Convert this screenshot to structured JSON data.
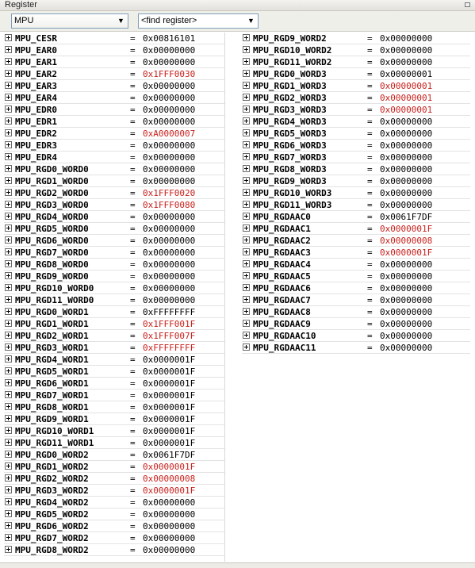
{
  "window": {
    "title": "Register"
  },
  "toolbar": {
    "module_value": "MPU",
    "find_placeholder": "<find register>"
  },
  "colors": {
    "changed": "#c8201c",
    "normal": "#000000"
  },
  "registers": {
    "left": [
      {
        "name": "MPU_CESR",
        "value": "0x00816101",
        "changed": false
      },
      {
        "name": "MPU_EAR0",
        "value": "0x00000000",
        "changed": false
      },
      {
        "name": "MPU_EAR1",
        "value": "0x00000000",
        "changed": false
      },
      {
        "name": "MPU_EAR2",
        "value": "0x1FFF0030",
        "changed": true
      },
      {
        "name": "MPU_EAR3",
        "value": "0x00000000",
        "changed": false
      },
      {
        "name": "MPU_EAR4",
        "value": "0x00000000",
        "changed": false
      },
      {
        "name": "MPU_EDR0",
        "value": "0x00000000",
        "changed": false
      },
      {
        "name": "MPU_EDR1",
        "value": "0x00000000",
        "changed": false
      },
      {
        "name": "MPU_EDR2",
        "value": "0xA0000007",
        "changed": true
      },
      {
        "name": "MPU_EDR3",
        "value": "0x00000000",
        "changed": false
      },
      {
        "name": "MPU_EDR4",
        "value": "0x00000000",
        "changed": false
      },
      {
        "name": "MPU_RGD0_WORD0",
        "value": "0x00000000",
        "changed": false
      },
      {
        "name": "MPU_RGD1_WORD0",
        "value": "0x00000000",
        "changed": false
      },
      {
        "name": "MPU_RGD2_WORD0",
        "value": "0x1FFF0020",
        "changed": true
      },
      {
        "name": "MPU_RGD3_WORD0",
        "value": "0x1FFF0080",
        "changed": true
      },
      {
        "name": "MPU_RGD4_WORD0",
        "value": "0x00000000",
        "changed": false
      },
      {
        "name": "MPU_RGD5_WORD0",
        "value": "0x00000000",
        "changed": false
      },
      {
        "name": "MPU_RGD6_WORD0",
        "value": "0x00000000",
        "changed": false
      },
      {
        "name": "MPU_RGD7_WORD0",
        "value": "0x00000000",
        "changed": false
      },
      {
        "name": "MPU_RGD8_WORD0",
        "value": "0x00000000",
        "changed": false
      },
      {
        "name": "MPU_RGD9_WORD0",
        "value": "0x00000000",
        "changed": false
      },
      {
        "name": "MPU_RGD10_WORD0",
        "value": "0x00000000",
        "changed": false
      },
      {
        "name": "MPU_RGD11_WORD0",
        "value": "0x00000000",
        "changed": false
      },
      {
        "name": "MPU_RGD0_WORD1",
        "value": "0xFFFFFFFF",
        "changed": false
      },
      {
        "name": "MPU_RGD1_WORD1",
        "value": "0x1FFF001F",
        "changed": true
      },
      {
        "name": "MPU_RGD2_WORD1",
        "value": "0x1FFF007F",
        "changed": true
      },
      {
        "name": "MPU_RGD3_WORD1",
        "value": "0xFFFFFFFF",
        "changed": true
      },
      {
        "name": "MPU_RGD4_WORD1",
        "value": "0x0000001F",
        "changed": false
      },
      {
        "name": "MPU_RGD5_WORD1",
        "value": "0x0000001F",
        "changed": false
      },
      {
        "name": "MPU_RGD6_WORD1",
        "value": "0x0000001F",
        "changed": false
      },
      {
        "name": "MPU_RGD7_WORD1",
        "value": "0x0000001F",
        "changed": false
      },
      {
        "name": "MPU_RGD8_WORD1",
        "value": "0x0000001F",
        "changed": false
      },
      {
        "name": "MPU_RGD9_WORD1",
        "value": "0x0000001F",
        "changed": false
      },
      {
        "name": "MPU_RGD10_WORD1",
        "value": "0x0000001F",
        "changed": false
      },
      {
        "name": "MPU_RGD11_WORD1",
        "value": "0x0000001F",
        "changed": false
      },
      {
        "name": "MPU_RGD0_WORD2",
        "value": "0x0061F7DF",
        "changed": false
      },
      {
        "name": "MPU_RGD1_WORD2",
        "value": "0x0000001F",
        "changed": true
      },
      {
        "name": "MPU_RGD2_WORD2",
        "value": "0x00000008",
        "changed": true
      },
      {
        "name": "MPU_RGD3_WORD2",
        "value": "0x0000001F",
        "changed": true
      },
      {
        "name": "MPU_RGD4_WORD2",
        "value": "0x00000000",
        "changed": false
      },
      {
        "name": "MPU_RGD5_WORD2",
        "value": "0x00000000",
        "changed": false
      },
      {
        "name": "MPU_RGD6_WORD2",
        "value": "0x00000000",
        "changed": false
      },
      {
        "name": "MPU_RGD7_WORD2",
        "value": "0x00000000",
        "changed": false
      },
      {
        "name": "MPU_RGD8_WORD2",
        "value": "0x00000000",
        "changed": false
      }
    ],
    "right": [
      {
        "name": "MPU_RGD9_WORD2",
        "value": "0x00000000",
        "changed": false
      },
      {
        "name": "MPU_RGD10_WORD2",
        "value": "0x00000000",
        "changed": false
      },
      {
        "name": "MPU_RGD11_WORD2",
        "value": "0x00000000",
        "changed": false
      },
      {
        "name": "MPU_RGD0_WORD3",
        "value": "0x00000001",
        "changed": false
      },
      {
        "name": "MPU_RGD1_WORD3",
        "value": "0x00000001",
        "changed": true
      },
      {
        "name": "MPU_RGD2_WORD3",
        "value": "0x00000001",
        "changed": true
      },
      {
        "name": "MPU_RGD3_WORD3",
        "value": "0x00000001",
        "changed": true
      },
      {
        "name": "MPU_RGD4_WORD3",
        "value": "0x00000000",
        "changed": false
      },
      {
        "name": "MPU_RGD5_WORD3",
        "value": "0x00000000",
        "changed": false
      },
      {
        "name": "MPU_RGD6_WORD3",
        "value": "0x00000000",
        "changed": false
      },
      {
        "name": "MPU_RGD7_WORD3",
        "value": "0x00000000",
        "changed": false
      },
      {
        "name": "MPU_RGD8_WORD3",
        "value": "0x00000000",
        "changed": false
      },
      {
        "name": "MPU_RGD9_WORD3",
        "value": "0x00000000",
        "changed": false
      },
      {
        "name": "MPU_RGD10_WORD3",
        "value": "0x00000000",
        "changed": false
      },
      {
        "name": "MPU_RGD11_WORD3",
        "value": "0x00000000",
        "changed": false
      },
      {
        "name": "MPU_RGDAAC0",
        "value": "0x0061F7DF",
        "changed": false
      },
      {
        "name": "MPU_RGDAAC1",
        "value": "0x0000001F",
        "changed": true
      },
      {
        "name": "MPU_RGDAAC2",
        "value": "0x00000008",
        "changed": true
      },
      {
        "name": "MPU_RGDAAC3",
        "value": "0x0000001F",
        "changed": true
      },
      {
        "name": "MPU_RGDAAC4",
        "value": "0x00000000",
        "changed": false
      },
      {
        "name": "MPU_RGDAAC5",
        "value": "0x00000000",
        "changed": false
      },
      {
        "name": "MPU_RGDAAC6",
        "value": "0x00000000",
        "changed": false
      },
      {
        "name": "MPU_RGDAAC7",
        "value": "0x00000000",
        "changed": false
      },
      {
        "name": "MPU_RGDAAC8",
        "value": "0x00000000",
        "changed": false
      },
      {
        "name": "MPU_RGDAAC9",
        "value": "0x00000000",
        "changed": false
      },
      {
        "name": "MPU_RGDAAC10",
        "value": "0x00000000",
        "changed": false
      },
      {
        "name": "MPU_RGDAAC11",
        "value": "0x00000000",
        "changed": false
      }
    ]
  }
}
